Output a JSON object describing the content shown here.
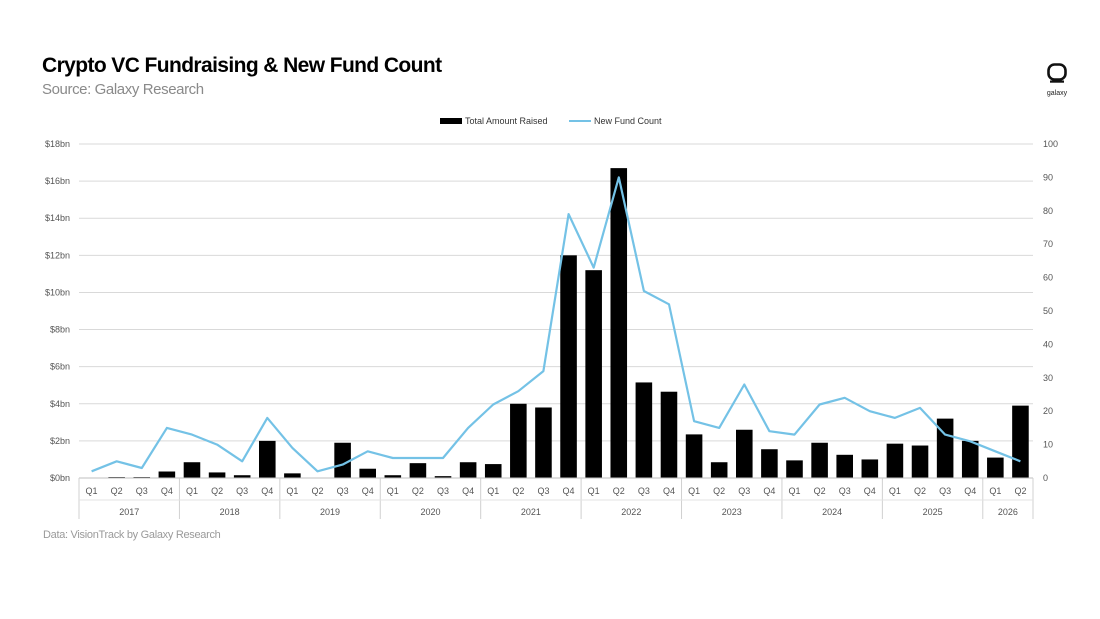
{
  "header": {
    "title": "Crypto VC Fundraising & New Fund Count",
    "subtitle": "Source: Galaxy Research"
  },
  "footer": {
    "note": "Data: VisionTrack by Galaxy Research"
  },
  "logo": {
    "text": "galaxy",
    "icon": "galaxy-logo-icon"
  },
  "colors": {
    "bar": "#000000",
    "line": "#74c2e6",
    "grid": "#d9d9d9"
  },
  "chart_data": {
    "type": "bar",
    "categories": [
      "Q1",
      "Q2",
      "Q3",
      "Q4",
      "Q1",
      "Q2",
      "Q3",
      "Q4",
      "Q1",
      "Q2",
      "Q3",
      "Q4",
      "Q1",
      "Q2",
      "Q3",
      "Q4",
      "Q1",
      "Q2",
      "Q3",
      "Q4",
      "Q1",
      "Q2",
      "Q3",
      "Q4",
      "Q1",
      "Q2",
      "Q3",
      "Q4",
      "Q1",
      "Q2",
      "Q3",
      "Q4",
      "Q1",
      "Q2",
      "Q3",
      "Q4",
      "Q1",
      "Q2"
    ],
    "years": [
      {
        "label": "2017",
        "quarters": 4
      },
      {
        "label": "2018",
        "quarters": 4
      },
      {
        "label": "2019",
        "quarters": 4
      },
      {
        "label": "2020",
        "quarters": 4
      },
      {
        "label": "2021",
        "quarters": 4
      },
      {
        "label": "2022",
        "quarters": 4
      },
      {
        "label": "2023",
        "quarters": 4
      },
      {
        "label": "2024",
        "quarters": 4
      },
      {
        "label": "2025",
        "quarters": 4
      },
      {
        "label": "2026",
        "quarters": 2
      }
    ],
    "series": [
      {
        "name": "Total Amount Raised",
        "type": "bar",
        "axis": "left",
        "values": [
          0,
          0.05,
          0.05,
          0.35,
          0.85,
          0.3,
          0.15,
          2.0,
          0.25,
          0,
          1.9,
          0.5,
          0.15,
          0.8,
          0.1,
          0.85,
          0.75,
          4.0,
          3.8,
          12.0,
          11.2,
          16.7,
          5.15,
          4.65,
          2.35,
          0.85,
          2.6,
          1.55,
          0.95,
          1.9,
          1.25,
          1.0,
          1.85,
          1.75,
          3.2,
          2.0,
          1.1,
          3.9
        ]
      },
      {
        "name": "New Fund Count",
        "type": "line",
        "axis": "right",
        "values": [
          2,
          5,
          3,
          15,
          13,
          10,
          5,
          18,
          9,
          2,
          4,
          8,
          6,
          6,
          6,
          15,
          22,
          26,
          32,
          79,
          63,
          90,
          56,
          52,
          17,
          15,
          28,
          14,
          13,
          22,
          24,
          20,
          18,
          21,
          13,
          11,
          8,
          5
        ]
      }
    ],
    "y_left": {
      "ticks": [
        "$0bn",
        "$2bn",
        "$4bn",
        "$6bn",
        "$8bn",
        "$10bn",
        "$12bn",
        "$14bn",
        "$16bn",
        "$18bn"
      ],
      "lim": [
        0,
        18
      ]
    },
    "y_right": {
      "ticks": [
        "0",
        "10",
        "20",
        "30",
        "40",
        "50",
        "60",
        "70",
        "80",
        "90",
        "100"
      ],
      "lim": [
        0,
        100
      ]
    },
    "grid": true,
    "legend": "top-center"
  }
}
